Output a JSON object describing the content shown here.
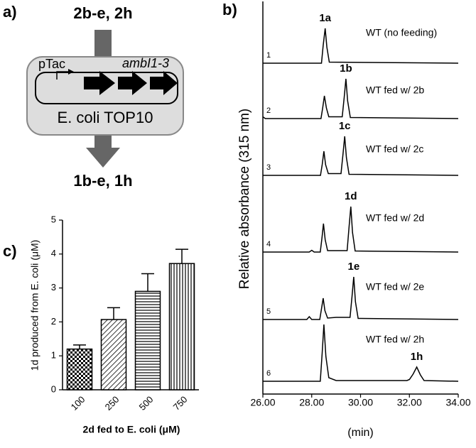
{
  "diagram": {
    "panel_label": "a)",
    "substrates": "2b-e, 2h",
    "promoter": "pTac",
    "genes": "ambI1-3",
    "host": "E. coli TOP10",
    "products": "1b-e, 1h"
  },
  "panel_labels": [
    "b)",
    "c)"
  ],
  "chart_data": [
    {
      "type": "line",
      "ylabel": "Relative absorbance (315 nm)",
      "xlabel": "(min)",
      "xlim": [
        26,
        34
      ],
      "xticks": [
        {
          "value": 26,
          "label": "26.00"
        },
        {
          "value": 28,
          "label": "28.00"
        },
        {
          "value": 30,
          "label": "30.00"
        },
        {
          "value": 32,
          "label": "32.00"
        },
        {
          "value": 34,
          "label": "34.00"
        }
      ],
      "series": [
        {
          "name": "1",
          "label": "WT (no feeding)",
          "peak_label": "1a",
          "color": "#000000",
          "x": [
            26,
            28.4,
            28.47,
            28.55,
            28.62,
            28.72,
            34
          ],
          "values": [
            0,
            0,
            0.5,
            0.98,
            0.45,
            0.03,
            0
          ]
        },
        {
          "name": "2",
          "label": "WT fed w/ 2b",
          "peak_label": "1b",
          "color": "#000000",
          "x": [
            26,
            26.1,
            28.38,
            28.45,
            28.52,
            28.6,
            28.7,
            29.25,
            29.33,
            29.4,
            29.47,
            29.58,
            34
          ],
          "values": [
            0.05,
            0,
            0,
            0.3,
            0.64,
            0.3,
            0.05,
            0.05,
            0.6,
            1.12,
            0.5,
            0.03,
            0
          ]
        },
        {
          "name": "3",
          "label": "WT fed w/ 2c",
          "peak_label": "1c",
          "color": "#000000",
          "x": [
            26,
            28.36,
            28.43,
            28.5,
            28.57,
            28.68,
            29.2,
            29.28,
            29.35,
            29.42,
            29.53,
            34
          ],
          "values": [
            0,
            0,
            0.3,
            0.68,
            0.3,
            0.05,
            0.05,
            0.6,
            1.1,
            0.5,
            0.03,
            0
          ]
        },
        {
          "name": "4",
          "label": "WT fed w/ 2d",
          "peak_label": "1d",
          "color": "#000000",
          "x": [
            26,
            27.9,
            28.0,
            28.1,
            28.35,
            28.42,
            28.48,
            28.55,
            28.65,
            29.45,
            29.53,
            29.6,
            29.67,
            29.78,
            34
          ],
          "values": [
            0,
            0,
            0.05,
            0,
            0,
            0.4,
            0.8,
            0.35,
            0.04,
            0.04,
            0.7,
            1.28,
            0.55,
            0.03,
            0
          ]
        },
        {
          "name": "5",
          "label": "WT fed w/ 2e",
          "peak_label": "1e",
          "color": "#000000",
          "x": [
            26,
            27.8,
            27.9,
            28.0,
            28.33,
            28.4,
            28.47,
            28.54,
            28.65,
            29.0,
            29.57,
            29.65,
            29.72,
            29.79,
            29.9,
            34
          ],
          "values": [
            0,
            0,
            0.08,
            0,
            0,
            0.3,
            0.6,
            0.25,
            0.04,
            0.06,
            0.06,
            0.65,
            1.2,
            0.5,
            0.03,
            0
          ]
        },
        {
          "name": "6",
          "label": "WT fed w/ 2h",
          "peak_label": "1h",
          "color": "#000000",
          "x": [
            26,
            28.35,
            28.43,
            28.5,
            28.58,
            28.7,
            29.0,
            31.9,
            32.0,
            32.15,
            32.3,
            32.45,
            32.6,
            34
          ],
          "values": [
            0,
            0,
            0.8,
            1.6,
            0.7,
            0.1,
            0.02,
            0.02,
            0.05,
            0.2,
            0.4,
            0.18,
            0.02,
            0
          ]
        }
      ]
    },
    {
      "type": "bar",
      "xlabel": "2d fed to E. coli (μM)",
      "ylabel": "1d produced from E. coli (μM)",
      "categories": [
        "100",
        "250",
        "500",
        "750"
      ],
      "values": [
        1.2,
        2.07,
        2.9,
        3.72
      ],
      "errors": [
        0.12,
        0.35,
        0.52,
        0.42
      ],
      "patterns": [
        "checker",
        "diagonal",
        "horizontal",
        "vertical"
      ],
      "color": "#000000",
      "ylim": [
        0,
        5
      ],
      "yticks": [
        0,
        1,
        2,
        3,
        4,
        5
      ]
    }
  ]
}
